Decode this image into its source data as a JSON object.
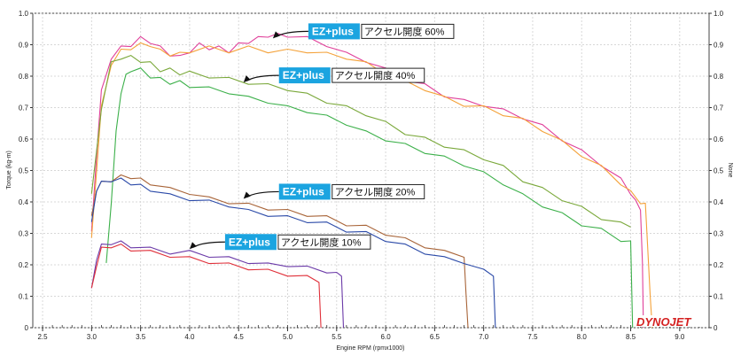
{
  "chart_data": {
    "type": "line",
    "xlabel": "Engine RPM (rpmx1000)",
    "ylabel": "Torque (kg-m)",
    "y2label": "None",
    "xlim": [
      2.4,
      9.3
    ],
    "ylim": [
      0,
      1.0
    ],
    "x_ticks": [
      "2.5",
      "3.0",
      "3.5",
      "4.0",
      "4.5",
      "5.0",
      "5.5",
      "6.0",
      "6.5",
      "7.0",
      "7.5",
      "8.0",
      "8.5",
      "9.0"
    ],
    "y_ticks": [
      "0",
      "0.1",
      "0.2",
      "0.3",
      "0.4",
      "0.5",
      "0.6",
      "0.7",
      "0.8",
      "0.9",
      "1.0"
    ],
    "y2_ticks": [
      "0",
      "0.1",
      "0.2",
      "0.3",
      "0.4",
      "0.5",
      "0.6",
      "0.7",
      "0.8",
      "0.9",
      "1.0"
    ],
    "grid": true,
    "series": [
      {
        "color": "#e0409a",
        "x": [
          3.0,
          3.05,
          3.1,
          3.2,
          3.3,
          3.4,
          3.5,
          3.6,
          3.7,
          3.8,
          3.9,
          4.0,
          4.1,
          4.2,
          4.3,
          4.4,
          4.5,
          4.6,
          4.7,
          4.8,
          4.9,
          5.0,
          5.2,
          5.4,
          5.6,
          5.8,
          6.0,
          6.2,
          6.4,
          6.6,
          6.8,
          7.0,
          7.2,
          7.4,
          7.6,
          7.8,
          8.0,
          8.2,
          8.4,
          8.5,
          8.55,
          8.6,
          8.62,
          8.63
        ],
        "y": [
          0.3,
          0.55,
          0.75,
          0.86,
          0.89,
          0.9,
          0.92,
          0.91,
          0.89,
          0.87,
          0.86,
          0.88,
          0.9,
          0.89,
          0.89,
          0.88,
          0.9,
          0.91,
          0.92,
          0.93,
          0.93,
          0.93,
          0.92,
          0.9,
          0.87,
          0.85,
          0.82,
          0.79,
          0.77,
          0.74,
          0.72,
          0.71,
          0.69,
          0.67,
          0.64,
          0.6,
          0.56,
          0.52,
          0.47,
          0.43,
          0.4,
          0.38,
          0.2,
          0.0
        ]
      },
      {
        "color": "#f4a23a",
        "x": [
          3.0,
          3.05,
          3.1,
          3.2,
          3.3,
          3.4,
          3.5,
          3.6,
          3.7,
          3.8,
          3.9,
          4.0,
          4.2,
          4.4,
          4.6,
          4.8,
          5.0,
          5.2,
          5.4,
          5.6,
          5.8,
          6.0,
          6.2,
          6.4,
          6.6,
          6.8,
          7.0,
          7.2,
          7.4,
          7.6,
          7.8,
          8.0,
          8.2,
          8.4,
          8.5,
          8.6,
          8.65,
          8.7,
          8.72
        ],
        "y": [
          0.28,
          0.5,
          0.7,
          0.84,
          0.88,
          0.89,
          0.9,
          0.9,
          0.88,
          0.87,
          0.87,
          0.88,
          0.89,
          0.88,
          0.89,
          0.88,
          0.88,
          0.88,
          0.87,
          0.86,
          0.84,
          0.81,
          0.78,
          0.76,
          0.73,
          0.71,
          0.7,
          0.68,
          0.66,
          0.63,
          0.59,
          0.55,
          0.51,
          0.46,
          0.43,
          0.4,
          0.39,
          0.1,
          0.0
        ]
      },
      {
        "color": "#7aa83a",
        "x": [
          3.0,
          3.1,
          3.2,
          3.3,
          3.4,
          3.5,
          3.6,
          3.7,
          3.8,
          3.9,
          4.0,
          4.2,
          4.4,
          4.6,
          4.8,
          5.0,
          5.2,
          5.4,
          5.6,
          5.8,
          6.0,
          6.2,
          6.4,
          6.6,
          6.8,
          7.0,
          7.2,
          7.4,
          7.6,
          7.8,
          8.0,
          8.2,
          8.4,
          8.5
        ],
        "y": [
          0.42,
          0.7,
          0.84,
          0.86,
          0.86,
          0.85,
          0.84,
          0.82,
          0.82,
          0.81,
          0.81,
          0.8,
          0.79,
          0.78,
          0.77,
          0.76,
          0.74,
          0.72,
          0.7,
          0.68,
          0.65,
          0.62,
          0.6,
          0.58,
          0.56,
          0.54,
          0.51,
          0.47,
          0.44,
          0.41,
          0.38,
          0.35,
          0.33,
          0.32
        ]
      },
      {
        "color": "#3cb04a",
        "x": [
          3.15,
          3.2,
          3.25,
          3.3,
          3.35,
          3.4,
          3.5,
          3.6,
          3.7,
          3.8,
          3.9,
          4.0,
          4.2,
          4.4,
          4.6,
          4.8,
          5.0,
          5.2,
          5.4,
          5.6,
          5.8,
          6.0,
          6.2,
          6.4,
          6.6,
          6.8,
          7.0,
          7.2,
          7.4,
          7.6,
          7.8,
          8.0,
          8.2,
          8.4,
          8.5,
          8.52
        ],
        "y": [
          0.2,
          0.4,
          0.62,
          0.75,
          0.8,
          0.82,
          0.82,
          0.8,
          0.79,
          0.78,
          0.78,
          0.77,
          0.76,
          0.75,
          0.73,
          0.72,
          0.7,
          0.69,
          0.67,
          0.65,
          0.62,
          0.6,
          0.58,
          0.56,
          0.54,
          0.52,
          0.49,
          0.46,
          0.42,
          0.39,
          0.36,
          0.33,
          0.31,
          0.28,
          0.27,
          0.0
        ]
      },
      {
        "color": "#a86438",
        "x": [
          3.0,
          3.05,
          3.1,
          3.2,
          3.3,
          3.4,
          3.5,
          3.6,
          3.8,
          4.0,
          4.2,
          4.4,
          4.6,
          4.8,
          5.0,
          5.2,
          5.4,
          5.6,
          5.8,
          6.0,
          6.2,
          6.4,
          6.6,
          6.8,
          6.82,
          6.84
        ],
        "y": [
          0.35,
          0.44,
          0.46,
          0.47,
          0.48,
          0.48,
          0.47,
          0.46,
          0.44,
          0.43,
          0.41,
          0.4,
          0.39,
          0.38,
          0.37,
          0.36,
          0.35,
          0.33,
          0.32,
          0.3,
          0.28,
          0.26,
          0.24,
          0.23,
          0.1,
          0.0
        ]
      },
      {
        "color": "#2b4aa8",
        "x": [
          3.0,
          3.05,
          3.1,
          3.2,
          3.3,
          3.4,
          3.5,
          3.6,
          3.8,
          4.0,
          4.2,
          4.4,
          4.6,
          4.8,
          5.0,
          5.2,
          5.4,
          5.6,
          5.8,
          6.0,
          6.2,
          6.4,
          6.6,
          6.8,
          7.0,
          7.1,
          7.12
        ],
        "y": [
          0.33,
          0.44,
          0.46,
          0.47,
          0.47,
          0.46,
          0.45,
          0.44,
          0.42,
          0.41,
          0.4,
          0.39,
          0.37,
          0.36,
          0.35,
          0.34,
          0.33,
          0.31,
          0.3,
          0.28,
          0.26,
          0.24,
          0.22,
          0.21,
          0.18,
          0.17,
          0.0
        ]
      },
      {
        "color": "#6b3aa8",
        "x": [
          3.0,
          3.05,
          3.1,
          3.2,
          3.3,
          3.4,
          3.6,
          3.8,
          4.0,
          4.2,
          4.4,
          4.6,
          4.8,
          5.0,
          5.2,
          5.4,
          5.5,
          5.55,
          5.57
        ],
        "y": [
          0.12,
          0.22,
          0.26,
          0.27,
          0.27,
          0.26,
          0.25,
          0.24,
          0.24,
          0.23,
          0.22,
          0.21,
          0.2,
          0.2,
          0.19,
          0.18,
          0.17,
          0.17,
          0.0
        ]
      },
      {
        "color": "#e0303a",
        "x": [
          3.0,
          3.05,
          3.1,
          3.2,
          3.3,
          3.4,
          3.6,
          3.8,
          4.0,
          4.2,
          4.4,
          4.6,
          4.8,
          5.0,
          5.2,
          5.32,
          5.34
        ],
        "y": [
          0.12,
          0.2,
          0.25,
          0.26,
          0.26,
          0.25,
          0.24,
          0.23,
          0.22,
          0.21,
          0.2,
          0.19,
          0.18,
          0.17,
          0.16,
          0.15,
          0.0
        ]
      }
    ],
    "annotations": [
      {
        "brand": "EZ+plus",
        "text": "アクセル開度 60%",
        "x": 4.85,
        "y": 0.92
      },
      {
        "brand": "EZ+plus",
        "text": "アクセル開度 40%",
        "x": 4.55,
        "y": 0.78
      },
      {
        "brand": "EZ+plus",
        "text": "アクセル開度 20%",
        "x": 4.55,
        "y": 0.41
      },
      {
        "brand": "EZ+plus",
        "text": "アクセル開度 10%",
        "x": 4.0,
        "y": 0.25
      }
    ]
  },
  "logo": {
    "text": "DYNOJET",
    "color": "#d42020"
  }
}
